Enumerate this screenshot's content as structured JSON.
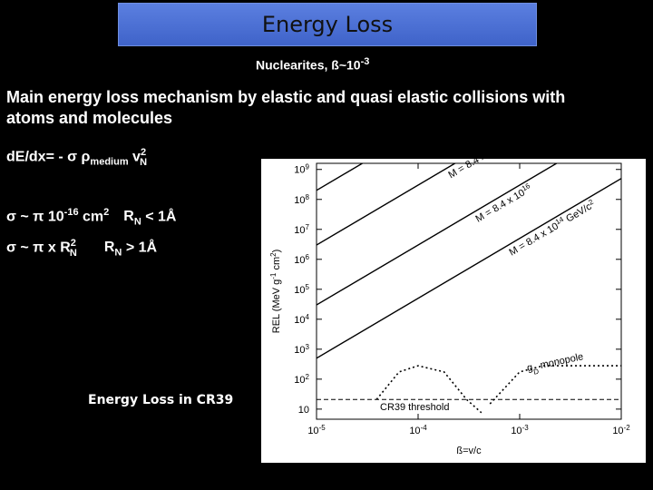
{
  "header": {
    "title": "Energy Loss",
    "subtitle": [
      "Nuclearites, ß~10",
      "-3"
    ]
  },
  "body": {
    "intro": [
      "Main energy loss mechanism by elastic and quasi elastic collisions with",
      "atoms and molecules"
    ],
    "formula": [
      "dE/dx= - σ ρ",
      "medium",
      " v",
      "2",
      "N"
    ],
    "case_small": [
      "σ ~ π 10",
      "-16",
      " cm",
      "2",
      "R",
      "N",
      " < 1Å"
    ],
    "case_large": [
      "σ ~ π x R",
      "2",
      "N",
      "R",
      "N",
      " > 1Å"
    ],
    "caption": "Energy Loss in CR39"
  },
  "figure": {
    "type": "line",
    "x_label": [
      "ß=v/c"
    ],
    "y_label": [
      "REL (MeV g",
      "-1",
      " cm",
      "2",
      ")"
    ],
    "xscale": "log",
    "yscale": "log",
    "xlim": [
      1e-05,
      0.01
    ],
    "ylim": [
      4.6,
      1600000000
    ],
    "xticks": [
      {
        "value": 1e-05,
        "label": "10",
        "sup": "-5"
      },
      {
        "value": 0.0001,
        "label": "10",
        "sup": "-4"
      },
      {
        "value": 0.001,
        "label": "10",
        "sup": "-3"
      },
      {
        "value": 0.01,
        "label": "10",
        "sup": "-2"
      }
    ],
    "yticks": [
      10,
      {
        "value": 100,
        "label": "10",
        "sup": "2"
      },
      {
        "value": 1000,
        "label": "10",
        "sup": "3"
      },
      {
        "value": 10000,
        "label": "10",
        "sup": "4"
      },
      {
        "value": 100000,
        "label": "10",
        "sup": "5"
      },
      {
        "value": 1000000,
        "label": "10",
        "sup": "6"
      },
      {
        "value": 10000000,
        "label": "10",
        "sup": "7"
      },
      {
        "value": 100000000,
        "label": "10",
        "sup": "8"
      },
      {
        "value": 1000000000,
        "label": "10",
        "sup": "9"
      }
    ],
    "series": [
      {
        "label": [
          "M = 8.4 x 10",
          "22"
        ],
        "color": "#000000",
        "x": [
          1e-05,
          0.01
        ],
        "values": [
          200000000,
          200000000000000
        ]
      },
      {
        "label": [
          "M = 8.4 x 10",
          "20"
        ],
        "color": "#000000",
        "x": [
          1e-05,
          0.01
        ],
        "values": [
          3000000,
          3000000000000
        ]
      },
      {
        "label": [
          "M = 8.4 x 10",
          "16"
        ],
        "color": "#000000",
        "x": [
          1e-05,
          0.01
        ],
        "values": [
          30000,
          30000000000
        ]
      },
      {
        "label": [
          "M = 8.4 x 10",
          "14",
          " GeV/c",
          "2"
        ],
        "color": "#000000",
        "x": [
          1e-05,
          0.01
        ],
        "values": [
          500,
          500000000
        ]
      }
    ],
    "monopole": {
      "label": [
        "g",
        "D",
        " monopole"
      ],
      "color": "#000000",
      "x": [
        3.9e-05,
        6.5e-05,
        0.0001,
        0.00018,
        0.0003,
        0.00042,
        null,
        0.00051,
        0.001,
        0.0017,
        0.01
      ],
      "values": [
        21,
        175,
        280,
        175,
        21,
        7.6,
        null,
        15,
        175,
        280,
        280
      ]
    },
    "threshold": {
      "label": "CR39 threshold",
      "value": 21,
      "color": "#000000"
    }
  }
}
